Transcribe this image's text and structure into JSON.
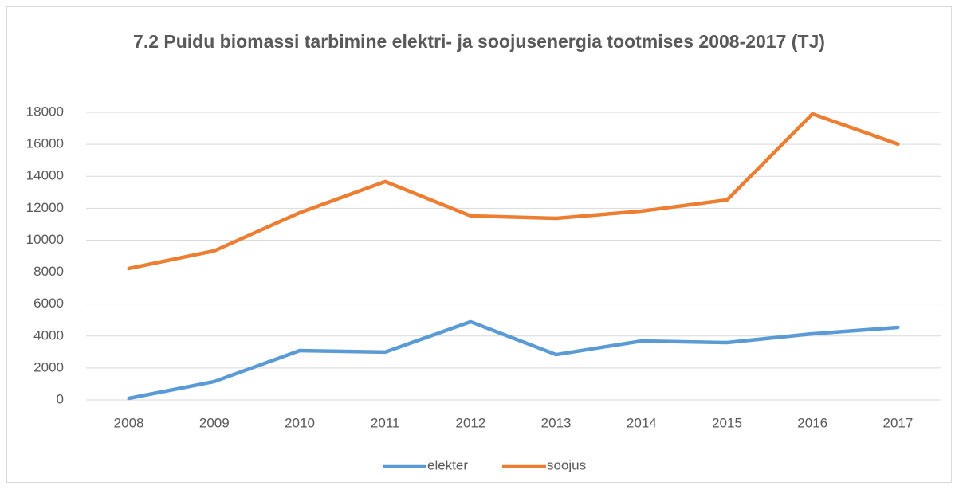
{
  "chart_data": {
    "type": "line",
    "title": "7.2 Puidu biomassi tarbimine elektri- ja soojusenergia tootmises 2008-2017 (TJ)",
    "categories": [
      "2008",
      "2009",
      "2010",
      "2011",
      "2012",
      "2013",
      "2014",
      "2015",
      "2016",
      "2017"
    ],
    "series": [
      {
        "name": "elekter",
        "color": "#5b9bd5",
        "values": [
          100,
          1150,
          3090,
          3000,
          4890,
          2840,
          3690,
          3590,
          4140,
          4540
        ]
      },
      {
        "name": "soojus",
        "color": "#ed7d31",
        "values": [
          8230,
          9330,
          11720,
          13670,
          11520,
          11370,
          11820,
          12520,
          17900,
          16010
        ]
      }
    ],
    "ylim": [
      0,
      18000
    ],
    "yticks": [
      0,
      2000,
      4000,
      6000,
      8000,
      10000,
      12000,
      14000,
      16000,
      18000
    ],
    "grid": true,
    "legend": "bottom"
  }
}
